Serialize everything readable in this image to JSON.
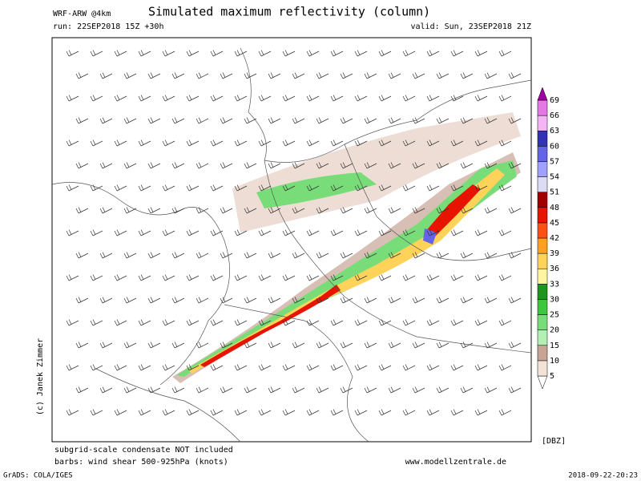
{
  "header": {
    "model": "WRF-ARW @4km",
    "title": "Simulated maximum reflectivity (column)",
    "run": "run: 22SEP2018 15Z +30h",
    "valid": "valid: Sun, 23SEP2018 21Z"
  },
  "credit": "(c) Janek Zimmer",
  "colorbar": {
    "unit": "[DBZ]",
    "levels": [
      5,
      10,
      15,
      20,
      25,
      30,
      33,
      36,
      39,
      42,
      45,
      48,
      51,
      54,
      57,
      60,
      63,
      66,
      69
    ],
    "colors": [
      "#ffffff",
      "#f2e2d8",
      "#c8a496",
      "#b4f0b4",
      "#78dc78",
      "#3cc83c",
      "#1e961e",
      "#fff5a0",
      "#ffd25a",
      "#ffa020",
      "#ff5014",
      "#e61400",
      "#a00000",
      "#dcdcf5",
      "#a0a0ff",
      "#6464e6",
      "#3232b4",
      "#f5b4f5",
      "#e678e6",
      "#c83cc8",
      "#a000a0"
    ]
  },
  "footer": {
    "note1": "subgrid-scale condensate NOT included",
    "note2": "barbs: wind shear 500-925hPa (knots)",
    "site": "www.modellzentrale.de",
    "software": "GrADS: COLA/IGES",
    "timestamp": "2018-09-22-20:23"
  }
}
